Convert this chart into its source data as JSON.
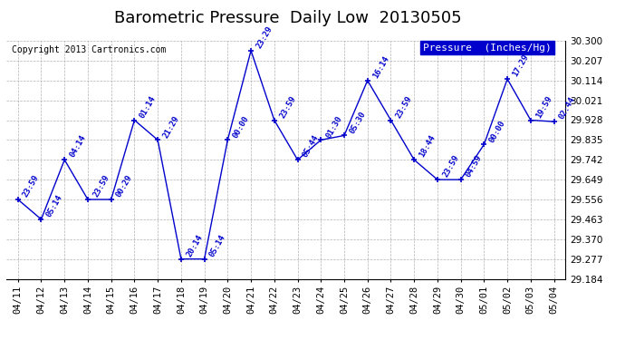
{
  "title": "Barometric Pressure  Daily Low  20130505",
  "copyright": "Copyright 2013 Cartronics.com",
  "legend_label": "Pressure  (Inches/Hg)",
  "dates": [
    "04/11",
    "04/12",
    "04/13",
    "04/14",
    "04/15",
    "04/16",
    "04/17",
    "04/18",
    "04/19",
    "04/20",
    "04/21",
    "04/22",
    "04/23",
    "04/24",
    "04/25",
    "04/26",
    "04/27",
    "04/28",
    "04/29",
    "04/30",
    "05/01",
    "05/02",
    "05/03",
    "05/04"
  ],
  "values": [
    29.556,
    29.463,
    29.742,
    29.556,
    29.556,
    29.928,
    29.835,
    29.277,
    29.277,
    29.835,
    30.254,
    29.928,
    29.742,
    29.835,
    29.856,
    30.114,
    29.928,
    29.742,
    29.649,
    29.649,
    29.814,
    30.121,
    29.928,
    29.921
  ],
  "times": [
    "23:59",
    "05:14",
    "04:14",
    "23:59",
    "00:29",
    "01:14",
    "21:29",
    "20:14",
    "05:14",
    "00:00",
    "23:29",
    "23:59",
    "05:44",
    "01:30",
    "05:30",
    "16:14",
    "23:59",
    "18:44",
    "23:59",
    "04:59",
    "00:00",
    "17:29",
    "19:59",
    "02:44"
  ],
  "line_color": "#0000CC",
  "marker_color": "#0000CC",
  "grid_color": "#AAAAAA",
  "bg_color": "#FFFFFF",
  "legend_bg": "#0000CC",
  "legend_text": "#FFFFFF",
  "title_color": "#000000",
  "copyright_color": "#000000",
  "ylim_min": 29.184,
  "ylim_max": 30.3,
  "yticks": [
    29.184,
    29.277,
    29.37,
    29.463,
    29.556,
    29.649,
    29.742,
    29.835,
    29.928,
    30.021,
    30.114,
    30.207,
    30.3
  ],
  "title_fontsize": 13,
  "tick_fontsize": 7.5,
  "annotation_fontsize": 6.5,
  "copyright_fontsize": 7,
  "legend_fontsize": 8
}
